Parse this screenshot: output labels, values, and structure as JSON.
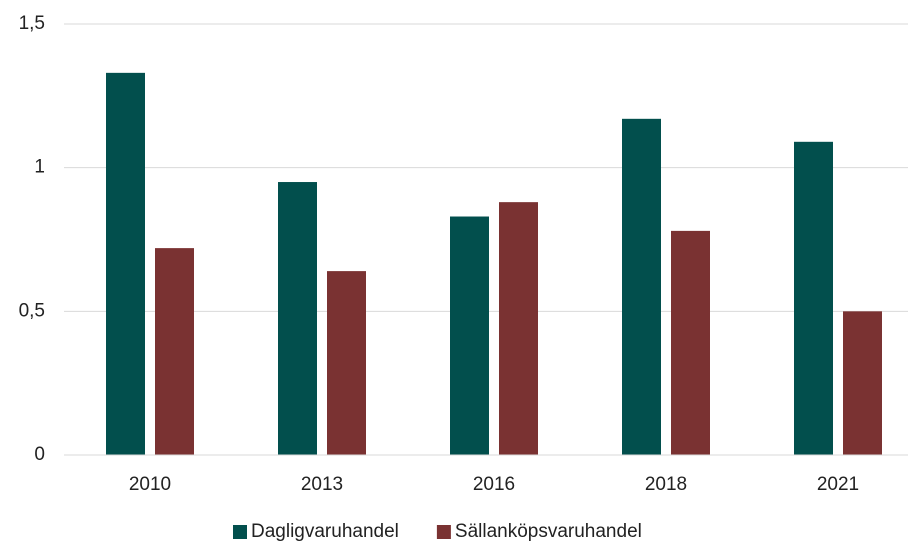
{
  "chart_data": {
    "type": "bar",
    "categories": [
      "2010",
      "2013",
      "2016",
      "2018",
      "2021"
    ],
    "series": [
      {
        "name": "Dagligvaruhandel",
        "color": "#024f4d",
        "values": [
          1.33,
          0.95,
          0.83,
          1.17,
          1.09
        ]
      },
      {
        "name": "Sällanköpsvaruhandel",
        "color": "#7a3232",
        "values": [
          0.72,
          0.64,
          0.88,
          0.78,
          0.5
        ]
      }
    ],
    "ylim": [
      0,
      1.5
    ],
    "yticks": [
      0,
      {
        "value": 0.5,
        "label": "0,5"
      },
      1,
      {
        "value": 1.5,
        "label": "1,5"
      }
    ],
    "grid": true,
    "legend": "bottom"
  }
}
